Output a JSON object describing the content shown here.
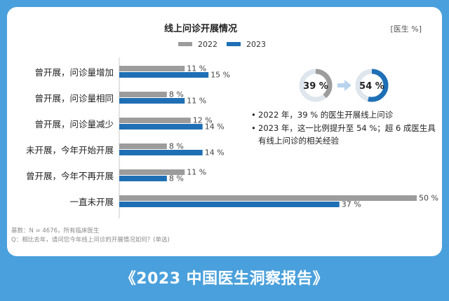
{
  "chart_data": {
    "type": "bar",
    "orientation": "horizontal",
    "title": "线上问诊开展情况",
    "unit_label": "[医生 %]",
    "categories": [
      "曾开展，问诊量增加",
      "曾开展，问诊量相同",
      "曾开展，问诊量减少",
      "未开展，今年开始开展",
      "曾开展，今年不再开展",
      "一直未开展"
    ],
    "series": [
      {
        "name": "2022",
        "color": "#9c9c9c",
        "values": [
          11,
          8,
          12,
          8,
          11,
          50
        ],
        "labels": [
          "11 %",
          "8 %",
          "12 %",
          "8 %",
          "11 %",
          "50 %"
        ]
      },
      {
        "name": "2023",
        "color": "#1f6fb5",
        "values": [
          15,
          11,
          14,
          14,
          8,
          37
        ],
        "labels": [
          "15 %",
          "11 %",
          "14 %",
          "14 %",
          "8 %",
          "37 %"
        ]
      }
    ],
    "xlim": [
      0,
      50
    ],
    "legend_position": "top-center",
    "grid": false
  },
  "comparison": {
    "from_value": 39,
    "from_label": "39 %",
    "to_value": 54,
    "to_label": "54 %",
    "ring_track_color": "#dfe6ee",
    "from_color": "#9c9c9c",
    "to_color": "#1f6fb5"
  },
  "notes": [
    {
      "bullet": "•",
      "lines": [
        "2022 年，39 % 的医生开展线上问诊"
      ]
    },
    {
      "bullet": "•",
      "lines": [
        "2023 年，这一比例提升至 54 %；超 6 成医生具",
        "有线上问诊的相关经验"
      ]
    }
  ],
  "footnotes": {
    "base": "基数：N = 4676，所有临床医生",
    "question": "Q：相比去年，请问您今年线上问诊的开展情况如何？(单选)"
  },
  "banner": "《2023 中国医生洞察报告》"
}
